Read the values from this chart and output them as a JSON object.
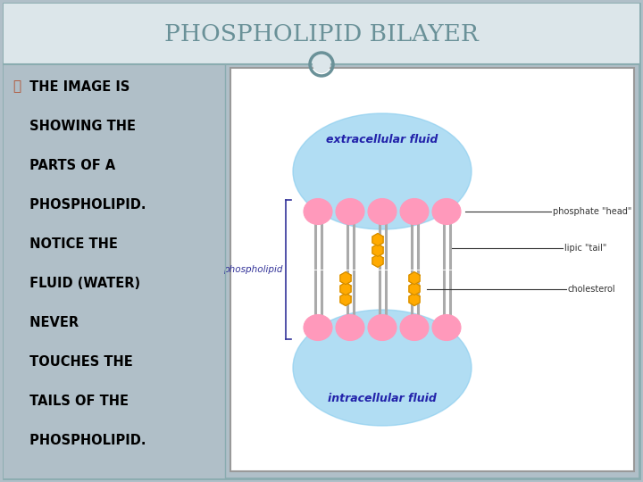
{
  "title": "PHOSPHOLIPID BILAYER",
  "title_color": "#6a9198",
  "slide_bg": "#b0bfc8",
  "header_bg": "#dce6ea",
  "text_color": "#000000",
  "bullet_lines": [
    " THE IMAGE IS",
    " SHOWING THE",
    " PARTS OF A",
    " PHOSPHOLIPID.",
    " NOTICE THE",
    " FLUID (WATER)",
    " NEVER",
    " TOUCHES THE",
    " TAILS OF THE",
    " PHOSPHOLIPID."
  ],
  "bullet_symbol": "❧",
  "bullet_color": "#b05030",
  "left_panel_bg": "#b0bfc8",
  "image_bg": "#ffffff",
  "fluid_color": "#88ccee",
  "head_color": "#ff99bb",
  "head_edge_color": "#cc7799",
  "tail_color": "#aaaaaa",
  "cholesterol_color": "#ffaa00",
  "cholesterol_edge": "#cc8800",
  "label_color": "#2222aa",
  "right_label_color": "#333333",
  "extracellular_label": "extracellular fluid",
  "intracellular_label": "intracellular fluid",
  "phospholipid_label": "phospholipid",
  "phosphate_head_label": "phosphate \"head\"",
  "lipid_tail_label": "lipic \"tail\"",
  "cholesterol_label": "cholesterol",
  "border_color": "#8aacb0",
  "circle_color": "#6a9198"
}
